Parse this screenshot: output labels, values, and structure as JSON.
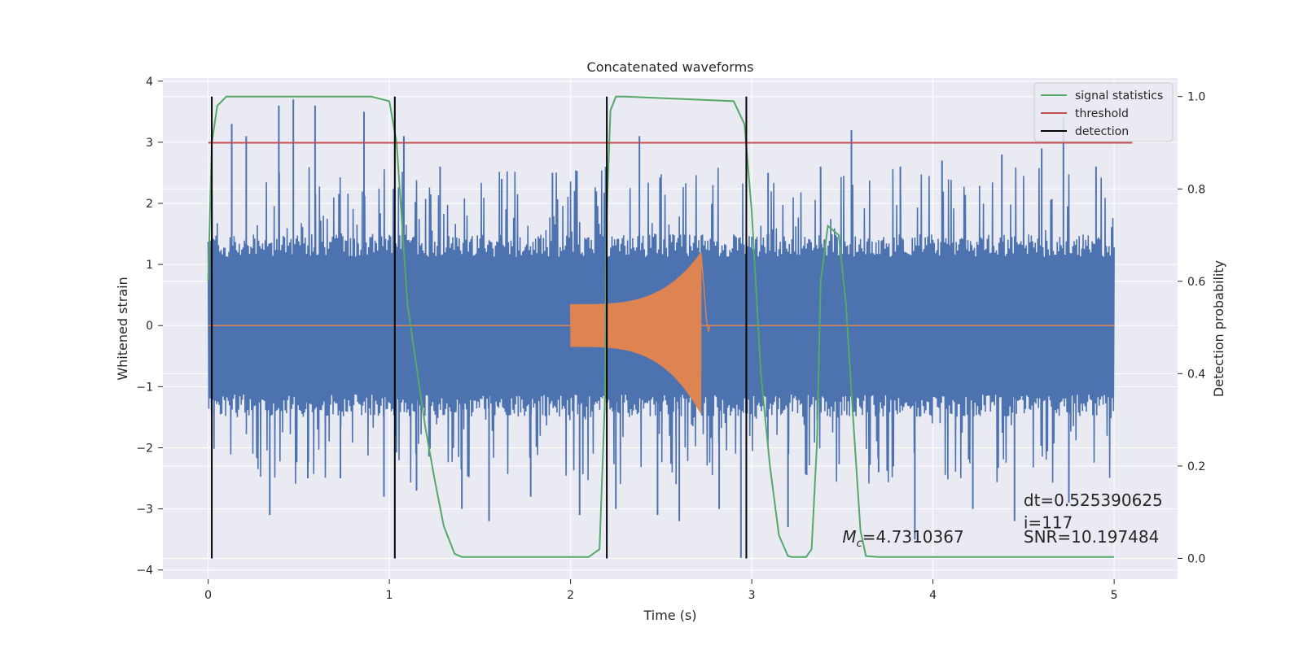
{
  "chart_data": {
    "type": "line",
    "title": "Concatenated waveforms",
    "xlabel": "Time (s)",
    "ylabel": "Whitened strain",
    "ylabel_right": "Detection probability",
    "xlim": [
      -0.25,
      5.35
    ],
    "ylim": [
      -4.15,
      4.05
    ],
    "ylim_right": [
      -0.045,
      1.04
    ],
    "x_ticks": [
      "0",
      "1",
      "2",
      "3",
      "4",
      "5"
    ],
    "y_ticks": [
      "4",
      "3",
      "2",
      "1",
      "0",
      "−1",
      "−2",
      "−3",
      "−4"
    ],
    "y_right_ticks": [
      "1.0",
      "0.8",
      "0.6",
      "0.4",
      "0.2",
      "0.0"
    ],
    "grid": true,
    "legend_position": "top-right",
    "colors": {
      "strain": "#4c72b0",
      "template": "#dd8452",
      "statistic": "#55a868",
      "threshold": "#c44e52",
      "detection": "#000000",
      "background": "#eaeaf2",
      "grid": "#ffffff"
    },
    "series": [
      {
        "name": "signal statistics",
        "axis": "right",
        "x": [
          0.0,
          0.02,
          0.05,
          0.1,
          0.9,
          1.0,
          1.04,
          1.1,
          1.2,
          1.25,
          1.3,
          1.36,
          1.4,
          1.6,
          2.1,
          2.16,
          2.19,
          2.2,
          2.22,
          2.25,
          2.3,
          2.9,
          2.96,
          3.0,
          3.05,
          3.1,
          3.15,
          3.2,
          3.22,
          3.3,
          3.33,
          3.36,
          3.38,
          3.42,
          3.48,
          3.52,
          3.56,
          3.6,
          3.63,
          3.7,
          5.0
        ],
        "values": [
          0.6,
          0.9,
          0.98,
          1.0,
          1.0,
          0.99,
          0.9,
          0.55,
          0.28,
          0.17,
          0.07,
          0.01,
          0.003,
          0.003,
          0.003,
          0.02,
          0.35,
          0.75,
          0.97,
          1.0,
          1.0,
          0.99,
          0.94,
          0.75,
          0.4,
          0.2,
          0.05,
          0.005,
          0.003,
          0.003,
          0.02,
          0.25,
          0.6,
          0.72,
          0.7,
          0.55,
          0.3,
          0.06,
          0.005,
          0.003,
          0.003
        ]
      },
      {
        "name": "threshold",
        "axis": "right",
        "x": [
          0.0,
          5.1
        ],
        "values": [
          0.9,
          0.9
        ]
      },
      {
        "name": "detection",
        "axis": "right",
        "segments_x": [
          0.02,
          1.03,
          2.2,
          2.97
        ],
        "range": [
          0.0,
          1.0
        ]
      }
    ],
    "strain_trace": {
      "x_range": [
        0.0,
        5.0
      ],
      "core_amplitude": 1.5,
      "spike_max": 3.7,
      "spike_min": -3.8,
      "spikes": [
        {
          "x": 0.13,
          "y": 3.3
        },
        {
          "x": 0.21,
          "y": 3.1
        },
        {
          "x": 0.34,
          "y": -3.1
        },
        {
          "x": 0.39,
          "y": 3.6
        },
        {
          "x": 0.47,
          "y": 3.7
        },
        {
          "x": 0.55,
          "y": -2.5
        },
        {
          "x": 0.59,
          "y": 3.6
        },
        {
          "x": 0.73,
          "y": -2.5
        },
        {
          "x": 0.86,
          "y": 3.5
        },
        {
          "x": 0.97,
          "y": -2.8
        },
        {
          "x": 1.08,
          "y": 3.1
        },
        {
          "x": 1.15,
          "y": -2.7
        },
        {
          "x": 1.28,
          "y": 2.6
        },
        {
          "x": 1.4,
          "y": -3.0
        },
        {
          "x": 1.55,
          "y": -3.2
        },
        {
          "x": 1.62,
          "y": 2.4
        },
        {
          "x": 1.78,
          "y": -2.8
        },
        {
          "x": 1.9,
          "y": 2.5
        },
        {
          "x": 2.05,
          "y": -3.1
        },
        {
          "x": 2.25,
          "y": -3.0
        },
        {
          "x": 2.38,
          "y": 3.1
        },
        {
          "x": 2.48,
          "y": -3.1
        },
        {
          "x": 2.6,
          "y": -3.2
        },
        {
          "x": 2.82,
          "y": -3.0
        },
        {
          "x": 2.94,
          "y": -3.8
        },
        {
          "x": 3.09,
          "y": 2.5
        },
        {
          "x": 3.2,
          "y": -3.3
        },
        {
          "x": 3.38,
          "y": 2.6
        },
        {
          "x": 3.55,
          "y": 3.2
        },
        {
          "x": 3.7,
          "y": -2.4
        },
        {
          "x": 3.82,
          "y": 2.6
        },
        {
          "x": 3.9,
          "y": -3.5
        },
        {
          "x": 4.05,
          "y": 2.7
        },
        {
          "x": 4.22,
          "y": -3.0
        },
        {
          "x": 4.38,
          "y": 2.8
        },
        {
          "x": 4.45,
          "y": -3.2
        },
        {
          "x": 4.6,
          "y": 2.9
        },
        {
          "x": 4.72,
          "y": 3.4
        },
        {
          "x": 4.75,
          "y": -2.9
        },
        {
          "x": 4.9,
          "y": 2.6
        }
      ]
    },
    "template_trace": {
      "x_start": 2.0,
      "x_peak": 2.72,
      "x_end": 2.75,
      "start_amplitude": 0.35,
      "peak_upper": 1.2,
      "peak_lower": -1.45
    },
    "annotations": [
      {
        "text_prefix": "M",
        "text_sub": "c",
        "text_value": "=4.7310367",
        "x": 3.5,
        "y": -3.55
      },
      {
        "text": "dt=0.525390625",
        "x": 4.5,
        "y": -2.95
      },
      {
        "text": " i=117",
        "x": 4.5,
        "y": -3.32
      },
      {
        "text": "SNR=10.197484",
        "x": 4.5,
        "y": -3.55
      }
    ]
  }
}
